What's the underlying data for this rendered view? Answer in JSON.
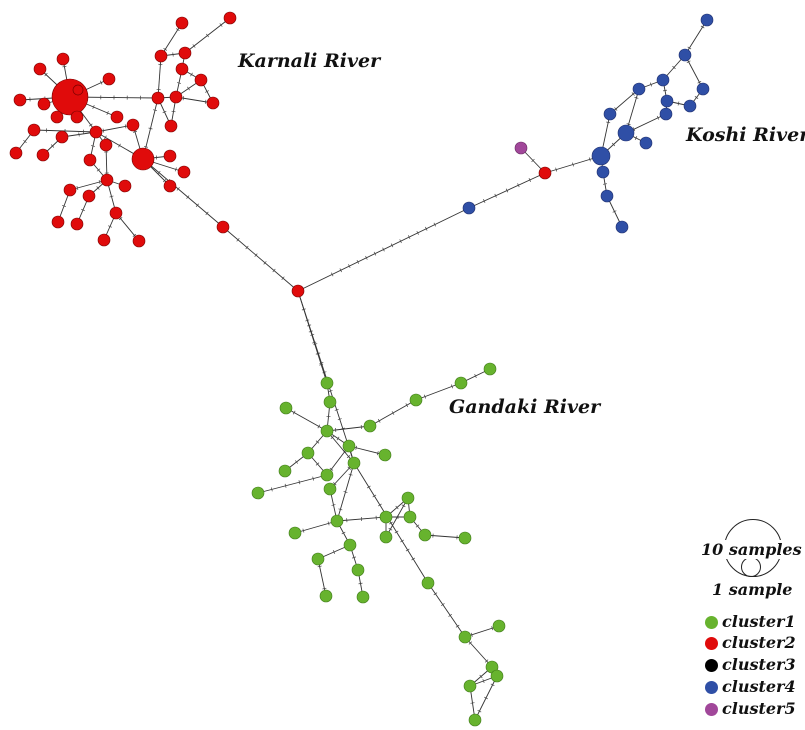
{
  "labels": {
    "karnali": "Karnali River",
    "koshi": "Koshi River",
    "gandaki": "Gandaki River"
  },
  "legend": {
    "size_large": "10 samples",
    "size_small": "1 sample",
    "clusters": [
      {
        "name": "cluster1",
        "color": "#67b32e"
      },
      {
        "name": "cluster2",
        "color": "#e00b0b"
      },
      {
        "name": "cluster3",
        "color": "#000000"
      },
      {
        "name": "cluster4",
        "color": "#2f4fa6"
      },
      {
        "name": "cluster5",
        "color": "#a1479a"
      }
    ]
  }
}
